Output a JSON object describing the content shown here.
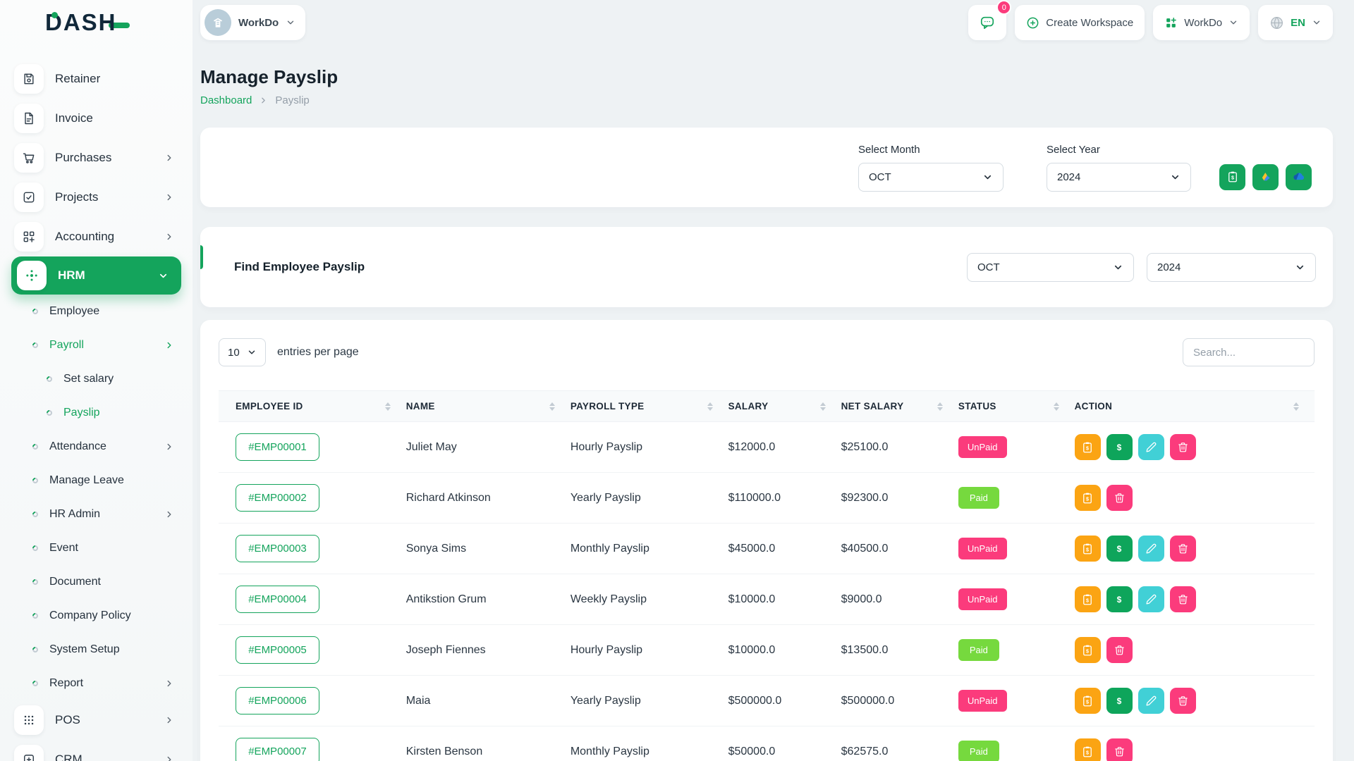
{
  "brand": {
    "name": "DASH"
  },
  "workspace": {
    "name": "WorkDo"
  },
  "header": {
    "messages_count": "0",
    "create_workspace": "Create Workspace",
    "apps_menu": "WorkDo",
    "language": "EN"
  },
  "sidebar": {
    "items": [
      {
        "label": "Retainer",
        "icon": "retainer-icon",
        "level": "top"
      },
      {
        "label": "Invoice",
        "icon": "invoice-icon",
        "level": "top"
      },
      {
        "label": "Purchases",
        "icon": "purchases-icon",
        "level": "top",
        "chevron": "right"
      },
      {
        "label": "Projects",
        "icon": "projects-icon",
        "level": "top",
        "chevron": "right"
      },
      {
        "label": "Accounting",
        "icon": "accounting-icon",
        "level": "top",
        "chevron": "right"
      },
      {
        "label": "HRM",
        "icon": "hrm-icon",
        "level": "top",
        "active": true,
        "chevron": "down"
      },
      {
        "label": "Employee",
        "level": "sub"
      },
      {
        "label": "Payroll",
        "level": "sub",
        "highlight": true,
        "chevron": "right"
      },
      {
        "label": "Set salary",
        "level": "subsub"
      },
      {
        "label": "Payslip",
        "level": "subsub",
        "highlight": true
      },
      {
        "label": "Attendance",
        "level": "sub",
        "chevron": "right"
      },
      {
        "label": "Manage Leave",
        "level": "sub"
      },
      {
        "label": "HR Admin",
        "level": "sub",
        "chevron": "right"
      },
      {
        "label": "Event",
        "level": "sub"
      },
      {
        "label": "Document",
        "level": "sub"
      },
      {
        "label": "Company Policy",
        "level": "sub"
      },
      {
        "label": "System Setup",
        "level": "sub"
      },
      {
        "label": "Report",
        "level": "sub",
        "chevron": "right"
      },
      {
        "label": "POS",
        "icon": "pos-icon",
        "level": "top",
        "chevron": "right"
      },
      {
        "label": "CRM",
        "icon": "crm-icon",
        "level": "top",
        "chevron": "right"
      }
    ]
  },
  "page": {
    "title": "Manage Payslip",
    "breadcrumb_home": "Dashboard",
    "breadcrumb_current": "Payslip"
  },
  "filter_card": {
    "month_label": "Select Month",
    "month_value": "OCT",
    "year_label": "Select Year",
    "year_value": "2024"
  },
  "find_card": {
    "title": "Find Employee Payslip",
    "month_value": "OCT",
    "year_value": "2024"
  },
  "table_card": {
    "entries_value": "10",
    "entries_label": "entries per page",
    "search_placeholder": "Search...",
    "columns": [
      "EMPLOYEE ID",
      "NAME",
      "PAYROLL TYPE",
      "SALARY",
      "NET SALARY",
      "STATUS",
      "ACTION"
    ],
    "rows": [
      {
        "employee_id": "#EMP00001",
        "name": "Juliet May",
        "payroll_type": "Hourly Payslip",
        "salary": "$12000.0",
        "net_salary": "$25100.0",
        "status": "UnPaid",
        "actions": [
          "payslip",
          "pay",
          "edit",
          "delete"
        ]
      },
      {
        "employee_id": "#EMP00002",
        "name": "Richard Atkinson",
        "payroll_type": "Yearly Payslip",
        "salary": "$110000.0",
        "net_salary": "$92300.0",
        "status": "Paid",
        "actions": [
          "payslip",
          "delete"
        ]
      },
      {
        "employee_id": "#EMP00003",
        "name": "Sonya Sims",
        "payroll_type": "Monthly Payslip",
        "salary": "$45000.0",
        "net_salary": "$40500.0",
        "status": "UnPaid",
        "actions": [
          "payslip",
          "pay",
          "edit",
          "delete"
        ]
      },
      {
        "employee_id": "#EMP00004",
        "name": "Antikstion Grum",
        "payroll_type": "Weekly Payslip",
        "salary": "$10000.0",
        "net_salary": "$9000.0",
        "status": "UnPaid",
        "actions": [
          "payslip",
          "pay",
          "edit",
          "delete"
        ]
      },
      {
        "employee_id": "#EMP00005",
        "name": "Joseph Fiennes",
        "payroll_type": "Hourly Payslip",
        "salary": "$10000.0",
        "net_salary": "$13500.0",
        "status": "Paid",
        "actions": [
          "payslip",
          "delete"
        ]
      },
      {
        "employee_id": "#EMP00006",
        "name": "Maia",
        "payroll_type": "Yearly Payslip",
        "salary": "$500000.0",
        "net_salary": "$500000.0",
        "status": "UnPaid",
        "actions": [
          "payslip",
          "pay",
          "edit",
          "delete"
        ]
      },
      {
        "employee_id": "#EMP00007",
        "name": "Kirsten Benson",
        "payroll_type": "Monthly Payslip",
        "salary": "$50000.0",
        "net_salary": "$62575.0",
        "status": "Paid",
        "actions": [
          "payslip",
          "delete"
        ]
      }
    ]
  },
  "colors": {
    "primary": "#14a45c",
    "paid": "#76d93e",
    "unpaid": "#fb3b7c",
    "action-orange": "#fba413",
    "action-green": "#0ea55b",
    "action-teal": "#41d0d6",
    "action-pink": "#fb3b7c"
  }
}
